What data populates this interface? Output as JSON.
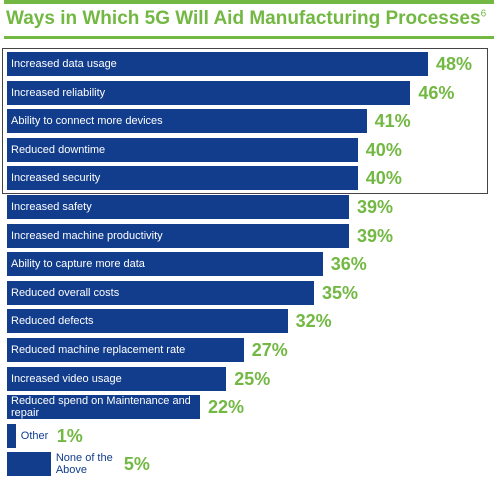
{
  "chart_data": {
    "type": "bar",
    "orientation": "horizontal",
    "title": "Ways in Which 5G Will Aid Manufacturing Processes",
    "title_superscript": "6",
    "categories": [
      "Increased data usage",
      "Increased reliability",
      "Ability to connect more devices",
      "Reduced downtime",
      "Increased security",
      "Increased safety",
      "Increased machine productivity",
      "Ability to capture more data",
      "Reduced overall costs",
      "Reduced defects",
      "Reduced machine replacement rate",
      "Increased video usage",
      "Reduced spend on Maintenance and repair",
      "Other",
      "None of the Above"
    ],
    "values": [
      48,
      46,
      41,
      40,
      40,
      39,
      39,
      36,
      35,
      32,
      27,
      25,
      22,
      1,
      5
    ],
    "value_labels": [
      "48%",
      "46%",
      "41%",
      "40%",
      "40%",
      "39%",
      "39%",
      "36%",
      "35%",
      "32%",
      "27%",
      "25%",
      "22%",
      "1%",
      "5%"
    ],
    "color": "#123d8c",
    "value_label_color": "#72b843"
  }
}
